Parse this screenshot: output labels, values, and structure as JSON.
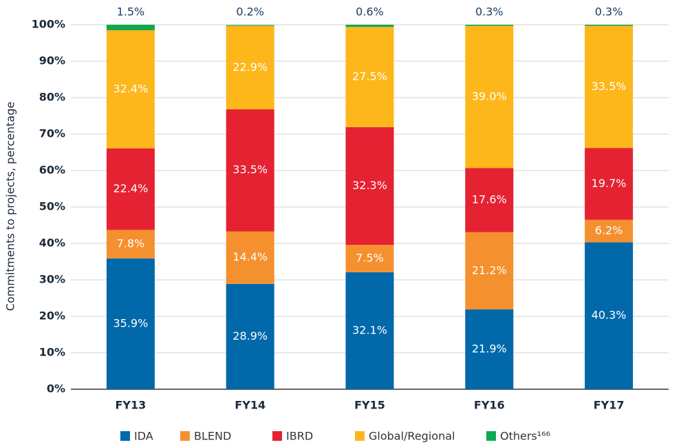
{
  "chart_data": {
    "type": "stacked_bar",
    "y_axis_label": "Commitments to projects, percentage",
    "categories": [
      "FY13",
      "FY14",
      "FY15",
      "FY16",
      "FY17"
    ],
    "series": [
      {
        "name": "IDA",
        "color": "#0168aa",
        "values": [
          35.9,
          28.9,
          32.1,
          21.9,
          40.3
        ],
        "value_labels": [
          "35.9%",
          "28.9%",
          "32.1%",
          "21.9%",
          "40.3%"
        ]
      },
      {
        "name": "BLEND",
        "color": "#f5902f",
        "values": [
          7.8,
          14.4,
          7.5,
          21.2,
          6.2
        ],
        "value_labels": [
          "7.8%",
          "14.4%",
          "7.5%",
          "21.2%",
          "6.2%"
        ]
      },
      {
        "name": "IBRD",
        "color": "#e52231",
        "values": [
          22.4,
          33.5,
          32.3,
          17.6,
          19.7
        ],
        "value_labels": [
          "22.4%",
          "33.5%",
          "32.3%",
          "17.6%",
          "19.7%"
        ]
      },
      {
        "name": "Global/Regional",
        "color": "#fdb71a",
        "values": [
          32.4,
          22.9,
          27.5,
          39.0,
          33.5
        ],
        "value_labels": [
          "32.4%",
          "22.9%",
          "27.5%",
          "39.0%",
          "33.5%"
        ]
      },
      {
        "name": "Others¹⁶⁶",
        "color": "#10a94f",
        "values": [
          1.5,
          0.2,
          0.6,
          0.3,
          0.3
        ],
        "value_labels": [
          "1.5%",
          "0.2%",
          "0.6%",
          "0.3%",
          "0.3%"
        ]
      }
    ],
    "ylim": [
      0,
      100
    ],
    "yticks": [
      {
        "value": 0,
        "label": "0%"
      },
      {
        "value": 10,
        "label": "10%"
      },
      {
        "value": 20,
        "label": "20%"
      },
      {
        "value": 30,
        "label": "30%"
      },
      {
        "value": 40,
        "label": "40%"
      },
      {
        "value": 50,
        "label": "50%"
      },
      {
        "value": 60,
        "label": "60%"
      },
      {
        "value": 70,
        "label": "70%"
      },
      {
        "value": 80,
        "label": "80%"
      },
      {
        "value": 90,
        "label": "90%"
      },
      {
        "value": 100,
        "label": "100%"
      }
    ],
    "grid": true,
    "legend": "bottom"
  }
}
